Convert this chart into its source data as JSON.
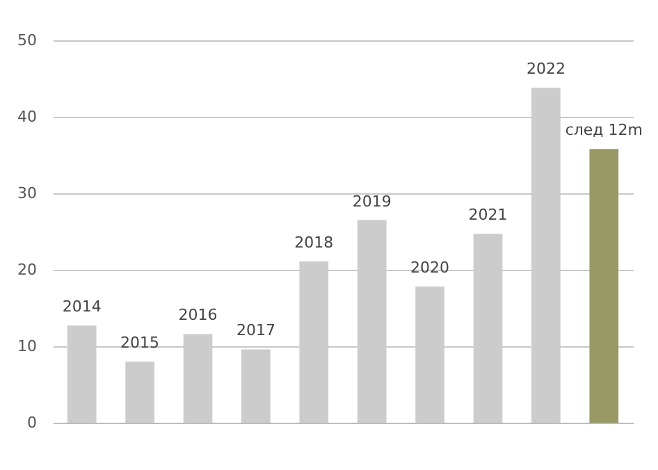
{
  "chart_data": {
    "type": "bar",
    "categories": [
      "2014",
      "2015",
      "2016",
      "2017",
      "2018",
      "2019",
      "2020",
      "2021",
      "2022",
      "след 12m"
    ],
    "values": [
      12.7,
      8.0,
      11.6,
      9.6,
      21.1,
      26.5,
      17.8,
      24.7,
      43.8,
      35.8
    ],
    "colors": [
      "#cccccc",
      "#cccccc",
      "#cccccc",
      "#cccccc",
      "#cccccc",
      "#cccccc",
      "#cccccc",
      "#cccccc",
      "#cccccc",
      "#999966"
    ],
    "ylim": [
      0,
      50
    ],
    "yticks": [
      0,
      10,
      20,
      30,
      40,
      50
    ],
    "grid": "y"
  }
}
